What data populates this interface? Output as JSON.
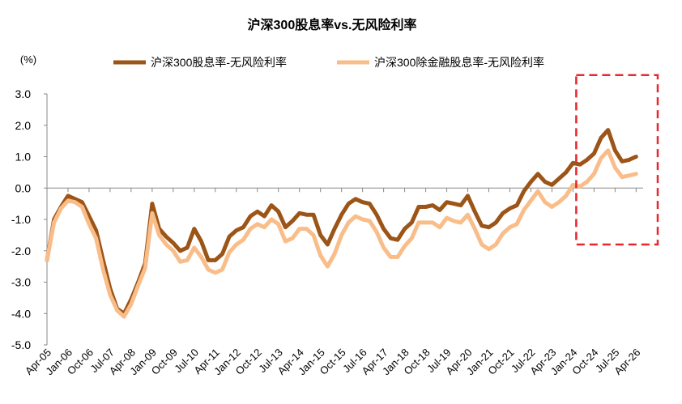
{
  "chart_data": {
    "type": "line",
    "title": "沪深300股息率vs.无风险利率",
    "ylabel": "(%)",
    "ylim": [
      -5.0,
      3.0
    ],
    "yticks": [
      "3.0",
      "2.0",
      "1.0",
      "0.0",
      "-1.0",
      "-2.0",
      "-3.0",
      "-4.0",
      "-5.0"
    ],
    "ytick_values": [
      3,
      2,
      1,
      0,
      -1,
      -2,
      -3,
      -4,
      -5
    ],
    "xlim": [
      "2005-04",
      "2026-07"
    ],
    "xticks": [
      "Apr-05",
      "Jan-06",
      "Oct-06",
      "Jul-07",
      "Apr-08",
      "Jan-09",
      "Oct-09",
      "Jul-10",
      "Apr-11",
      "Jan-12",
      "Oct-12",
      "Jul-13",
      "Apr-14",
      "Jan-15",
      "Oct-15",
      "Jul-16",
      "Apr-17",
      "Jan-18",
      "Oct-18",
      "Jul-19",
      "Apr-20",
      "Jan-21",
      "Oct-21",
      "Jul-22",
      "Apr-23",
      "Jan-24",
      "Oct-24",
      "Jul-25",
      "Apr-26"
    ],
    "xtick_dates": [
      "2005-04",
      "2006-01",
      "2006-10",
      "2007-07",
      "2008-04",
      "2009-01",
      "2009-10",
      "2010-07",
      "2011-04",
      "2012-01",
      "2012-10",
      "2013-07",
      "2014-04",
      "2015-01",
      "2015-10",
      "2016-07",
      "2017-04",
      "2018-01",
      "2018-10",
      "2019-07",
      "2020-04",
      "2021-01",
      "2021-10",
      "2022-07",
      "2023-04",
      "2024-01",
      "2024-10",
      "2025-07",
      "2026-04"
    ],
    "legend_placement": "top",
    "grid": false,
    "highlight_box": {
      "style": "dashed",
      "color": "#e8262b",
      "x_range": [
        "2024-01",
        "2026-07"
      ],
      "y_range": [
        -1.8,
        3.6
      ]
    },
    "series": [
      {
        "name": "沪深300股息率-无风险利率",
        "color": "#9c5417",
        "points": [
          [
            "2005-04",
            -2.3
          ],
          [
            "2005-07",
            -1.0
          ],
          [
            "2005-10",
            -0.6
          ],
          [
            "2006-01",
            -0.25
          ],
          [
            "2006-04",
            -0.35
          ],
          [
            "2006-07",
            -0.45
          ],
          [
            "2006-10",
            -0.9
          ],
          [
            "2007-01",
            -1.35
          ],
          [
            "2007-04",
            -2.3
          ],
          [
            "2007-07",
            -3.2
          ],
          [
            "2007-10",
            -3.85
          ],
          [
            "2008-01",
            -4.0
          ],
          [
            "2008-04",
            -3.55
          ],
          [
            "2008-07",
            -3.0
          ],
          [
            "2008-10",
            -2.4
          ],
          [
            "2009-01",
            -0.5
          ],
          [
            "2009-04",
            -1.3
          ],
          [
            "2009-07",
            -1.55
          ],
          [
            "2009-10",
            -1.75
          ],
          [
            "2010-01",
            -2.0
          ],
          [
            "2010-04",
            -1.9
          ],
          [
            "2010-07",
            -1.3
          ],
          [
            "2010-10",
            -1.7
          ],
          [
            "2011-01",
            -2.3
          ],
          [
            "2011-04",
            -2.3
          ],
          [
            "2011-07",
            -2.1
          ],
          [
            "2011-10",
            -1.55
          ],
          [
            "2012-01",
            -1.35
          ],
          [
            "2012-04",
            -1.25
          ],
          [
            "2012-07",
            -0.9
          ],
          [
            "2012-10",
            -0.75
          ],
          [
            "2013-01",
            -0.9
          ],
          [
            "2013-04",
            -0.55
          ],
          [
            "2013-07",
            -0.75
          ],
          [
            "2013-10",
            -1.25
          ],
          [
            "2014-01",
            -1.05
          ],
          [
            "2014-04",
            -0.8
          ],
          [
            "2014-07",
            -0.85
          ],
          [
            "2014-10",
            -0.85
          ],
          [
            "2015-01",
            -1.5
          ],
          [
            "2015-04",
            -1.8
          ],
          [
            "2015-07",
            -1.3
          ],
          [
            "2015-10",
            -0.85
          ],
          [
            "2016-01",
            -0.5
          ],
          [
            "2016-04",
            -0.35
          ],
          [
            "2016-07",
            -0.45
          ],
          [
            "2016-10",
            -0.5
          ],
          [
            "2017-01",
            -0.85
          ],
          [
            "2017-04",
            -1.3
          ],
          [
            "2017-07",
            -1.6
          ],
          [
            "2017-10",
            -1.65
          ],
          [
            "2018-01",
            -1.3
          ],
          [
            "2018-04",
            -1.1
          ],
          [
            "2018-07",
            -0.6
          ],
          [
            "2018-10",
            -0.6
          ],
          [
            "2019-01",
            -0.55
          ],
          [
            "2019-04",
            -0.7
          ],
          [
            "2019-07",
            -0.45
          ],
          [
            "2019-10",
            -0.5
          ],
          [
            "2020-01",
            -0.55
          ],
          [
            "2020-04",
            -0.25
          ],
          [
            "2020-07",
            -0.75
          ],
          [
            "2020-10",
            -1.2
          ],
          [
            "2021-01",
            -1.25
          ],
          [
            "2021-04",
            -1.1
          ],
          [
            "2021-07",
            -0.8
          ],
          [
            "2021-10",
            -0.65
          ],
          [
            "2022-01",
            -0.55
          ],
          [
            "2022-04",
            -0.1
          ],
          [
            "2022-07",
            0.2
          ],
          [
            "2022-10",
            0.45
          ],
          [
            "2023-01",
            0.2
          ],
          [
            "2023-04",
            0.1
          ],
          [
            "2023-07",
            0.3
          ],
          [
            "2023-10",
            0.5
          ],
          [
            "2024-01",
            0.8
          ],
          [
            "2024-04",
            0.75
          ],
          [
            "2024-07",
            0.9
          ],
          [
            "2024-10",
            1.1
          ],
          [
            "2025-01",
            1.6
          ],
          [
            "2025-04",
            1.85
          ],
          [
            "2025-07",
            1.2
          ],
          [
            "2025-10",
            0.85
          ],
          [
            "2026-01",
            0.9
          ],
          [
            "2026-04",
            1.0
          ]
        ]
      },
      {
        "name": "沪深300除金融股息率-无风险利率",
        "color": "#f9bd8a",
        "points": [
          [
            "2005-04",
            -2.3
          ],
          [
            "2005-07",
            -1.1
          ],
          [
            "2005-10",
            -0.65
          ],
          [
            "2006-01",
            -0.4
          ],
          [
            "2006-04",
            -0.45
          ],
          [
            "2006-07",
            -0.6
          ],
          [
            "2006-10",
            -1.15
          ],
          [
            "2007-01",
            -1.6
          ],
          [
            "2007-04",
            -2.6
          ],
          [
            "2007-07",
            -3.4
          ],
          [
            "2007-10",
            -3.9
          ],
          [
            "2008-01",
            -4.1
          ],
          [
            "2008-04",
            -3.7
          ],
          [
            "2008-07",
            -3.1
          ],
          [
            "2008-10",
            -2.55
          ],
          [
            "2009-01",
            -0.8
          ],
          [
            "2009-04",
            -1.5
          ],
          [
            "2009-07",
            -1.8
          ],
          [
            "2009-10",
            -2.0
          ],
          [
            "2010-01",
            -2.35
          ],
          [
            "2010-04",
            -2.3
          ],
          [
            "2010-07",
            -1.9
          ],
          [
            "2010-10",
            -2.2
          ],
          [
            "2011-01",
            -2.6
          ],
          [
            "2011-04",
            -2.7
          ],
          [
            "2011-07",
            -2.6
          ],
          [
            "2011-10",
            -2.05
          ],
          [
            "2012-01",
            -1.8
          ],
          [
            "2012-04",
            -1.65
          ],
          [
            "2012-07",
            -1.3
          ],
          [
            "2012-10",
            -1.15
          ],
          [
            "2013-01",
            -1.25
          ],
          [
            "2013-04",
            -1.0
          ],
          [
            "2013-07",
            -1.15
          ],
          [
            "2013-10",
            -1.7
          ],
          [
            "2014-01",
            -1.6
          ],
          [
            "2014-04",
            -1.3
          ],
          [
            "2014-07",
            -1.3
          ],
          [
            "2014-10",
            -1.5
          ],
          [
            "2015-01",
            -2.15
          ],
          [
            "2015-04",
            -2.5
          ],
          [
            "2015-07",
            -2.1
          ],
          [
            "2015-10",
            -1.5
          ],
          [
            "2016-01",
            -1.1
          ],
          [
            "2016-04",
            -0.9
          ],
          [
            "2016-07",
            -1.0
          ],
          [
            "2016-10",
            -1.05
          ],
          [
            "2017-01",
            -1.4
          ],
          [
            "2017-04",
            -1.9
          ],
          [
            "2017-07",
            -2.2
          ],
          [
            "2017-10",
            -2.2
          ],
          [
            "2018-01",
            -1.85
          ],
          [
            "2018-04",
            -1.6
          ],
          [
            "2018-07",
            -1.1
          ],
          [
            "2018-10",
            -1.1
          ],
          [
            "2019-01",
            -1.1
          ],
          [
            "2019-04",
            -1.25
          ],
          [
            "2019-07",
            -0.95
          ],
          [
            "2019-10",
            -1.05
          ],
          [
            "2020-01",
            -1.1
          ],
          [
            "2020-04",
            -0.85
          ],
          [
            "2020-07",
            -1.3
          ],
          [
            "2020-10",
            -1.8
          ],
          [
            "2021-01",
            -1.95
          ],
          [
            "2021-04",
            -1.8
          ],
          [
            "2021-07",
            -1.45
          ],
          [
            "2021-10",
            -1.25
          ],
          [
            "2022-01",
            -1.15
          ],
          [
            "2022-04",
            -0.7
          ],
          [
            "2022-07",
            -0.4
          ],
          [
            "2022-10",
            -0.1
          ],
          [
            "2023-01",
            -0.45
          ],
          [
            "2023-04",
            -0.6
          ],
          [
            "2023-07",
            -0.45
          ],
          [
            "2023-10",
            -0.25
          ],
          [
            "2024-01",
            0.1
          ],
          [
            "2024-04",
            0.05
          ],
          [
            "2024-07",
            0.2
          ],
          [
            "2024-10",
            0.45
          ],
          [
            "2025-01",
            0.95
          ],
          [
            "2025-04",
            1.2
          ],
          [
            "2025-07",
            0.65
          ],
          [
            "2025-10",
            0.35
          ],
          [
            "2026-01",
            0.4
          ],
          [
            "2026-04",
            0.45
          ]
        ]
      }
    ]
  }
}
